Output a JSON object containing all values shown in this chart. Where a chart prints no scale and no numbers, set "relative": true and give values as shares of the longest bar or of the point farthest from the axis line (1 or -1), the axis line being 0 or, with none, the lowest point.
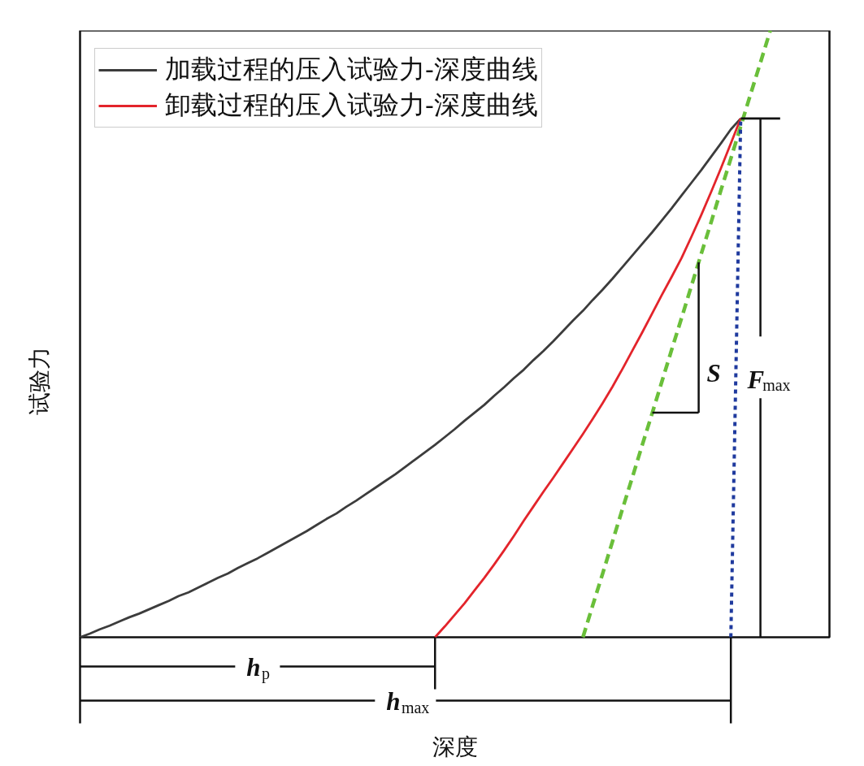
{
  "chart_data": {
    "type": "line",
    "relative": true,
    "xlabel": "深度",
    "ylabel": "试验力",
    "legend": "top left",
    "categories": [
      null,
      null,
      null,
      null,
      null,
      null,
      null,
      null,
      null,
      null,
      null,
      null,
      null,
      null,
      null,
      null,
      null,
      null,
      null,
      null,
      null,
      null,
      null,
      null,
      null,
      null,
      null,
      null,
      null,
      null,
      null,
      null,
      null,
      null,
      null,
      null,
      null,
      null,
      null,
      null,
      null,
      null,
      null,
      null,
      null,
      null,
      null,
      null,
      null,
      null,
      null,
      null,
      null,
      null,
      null,
      null,
      null,
      null,
      null,
      null,
      null,
      null,
      null,
      null,
      null,
      null,
      null,
      null,
      null,
      null,
      null,
      null,
      null,
      null,
      null,
      null,
      null
    ],
    "series": [
      {
        "name": "加载过程的压入试验力-深度曲线",
        "color": "#3c3c3c",
        "values": [
          0,
          0.006,
          0.013,
          0.019,
          0.026,
          0.033,
          0.039,
          0.046,
          0.053,
          0.06,
          0.068,
          0.074,
          0.082,
          0.09,
          0.098,
          0.105,
          0.114,
          0.122,
          0.13,
          0.139,
          0.148,
          0.157,
          0.166,
          0.175,
          0.185,
          0.195,
          0.204,
          0.215,
          0.225,
          0.236,
          0.247,
          0.258,
          0.269,
          0.281,
          0.293,
          0.305,
          0.317,
          0.33,
          0.343,
          0.357,
          0.37,
          0.383,
          0.398,
          0.412,
          0.427,
          0.441,
          0.457,
          0.472,
          0.488,
          0.505,
          0.522,
          0.538,
          0.556,
          0.573,
          0.591,
          0.61,
          0.629,
          0.648,
          0.667,
          0.687,
          0.707,
          0.728,
          0.749,
          0.77,
          0.792,
          0.814,
          0.837,
          0.855,
          null,
          null,
          null,
          null,
          null,
          null,
          null,
          null,
          null
        ]
      },
      {
        "name": "卸载过程的压入试验力-深度曲线",
        "color": "#e3242b",
        "values": [
          null,
          null,
          null,
          null,
          null,
          null,
          null,
          null,
          null,
          null,
          null,
          null,
          null,
          null,
          null,
          null,
          null,
          null,
          null,
          null,
          null,
          null,
          null,
          null,
          null,
          null,
          null,
          null,
          null,
          null,
          null,
          null,
          null,
          null,
          null,
          null,
          0,
          0.018,
          0.037,
          0.056,
          0.077,
          0.098,
          0.12,
          0.143,
          0.167,
          0.192,
          0.216,
          0.24,
          0.263,
          0.287,
          0.311,
          0.335,
          0.36,
          0.386,
          0.413,
          0.442,
          0.472,
          0.502,
          0.533,
          0.564,
          0.594,
          0.625,
          0.66,
          0.696,
          0.734,
          0.773,
          0.814,
          0.855,
          null,
          null,
          null,
          null,
          null,
          null,
          null,
          null,
          null
        ]
      },
      {
        "color": "#6abf3a",
        "line_style": "dashed",
        "values": [
          null,
          null,
          null,
          null,
          null,
          null,
          null,
          null,
          null,
          null,
          null,
          null,
          null,
          null,
          null,
          null,
          null,
          null,
          null,
          null,
          null,
          null,
          null,
          null,
          null,
          null,
          null,
          null,
          null,
          null,
          null,
          null,
          null,
          null,
          null,
          null,
          null,
          null,
          null,
          null,
          null,
          null,
          null,
          null,
          null,
          null,
          null,
          null,
          null,
          null,
          null,
          0,
          0.053,
          0.105,
          0.158,
          0.211,
          0.263,
          0.316,
          0.368,
          0.421,
          0.474,
          0.526,
          0.579,
          0.632,
          0.684,
          0.737,
          0.789,
          0.842,
          0.895,
          0.947,
          1,
          null,
          null,
          null,
          null,
          null,
          null
        ]
      },
      {
        "color": "#1f3a9e",
        "line_style": "dotted",
        "values": [
          null,
          null,
          null,
          null,
          null,
          null,
          null,
          null,
          null,
          null,
          null,
          null,
          null,
          null,
          null,
          null,
          null,
          null,
          null,
          null,
          null,
          null,
          null,
          null,
          null,
          null,
          null,
          null,
          null,
          null,
          null,
          null,
          null,
          null,
          null,
          null,
          null,
          null,
          null,
          null,
          null,
          null,
          null,
          null,
          null,
          null,
          null,
          null,
          null,
          null,
          null,
          null,
          null,
          null,
          null,
          null,
          null,
          null,
          null,
          null,
          null,
          null,
          null,
          null,
          null,
          null,
          0,
          0.855,
          null,
          null,
          null,
          null,
          null,
          null,
          null,
          null,
          null
        ]
      },
      {
        "color": "#111111",
        "values": [
          null,
          null,
          null,
          null,
          null,
          null,
          null,
          null,
          null,
          null,
          null,
          null,
          null,
          null,
          null,
          null,
          null,
          null,
          null,
          null,
          null,
          null,
          null,
          null,
          null,
          null,
          null,
          null,
          null,
          null,
          null,
          null,
          null,
          null,
          null,
          null,
          null,
          null,
          null,
          null,
          null,
          null,
          null,
          null,
          null,
          null,
          null,
          null,
          null,
          null,
          null,
          null,
          null,
          null,
          null,
          null,
          null,
          null,
          null,
          null,
          null,
          null,
          null,
          null,
          null,
          null,
          null,
          0.855,
          0.855,
          0.855,
          0.855,
          0.855,
          null,
          null,
          null,
          null,
          null
        ]
      }
    ],
    "annotations": [
      "h$_{p}$",
      "h$_{max}$",
      "S",
      "F$_{max}$"
    ]
  }
}
